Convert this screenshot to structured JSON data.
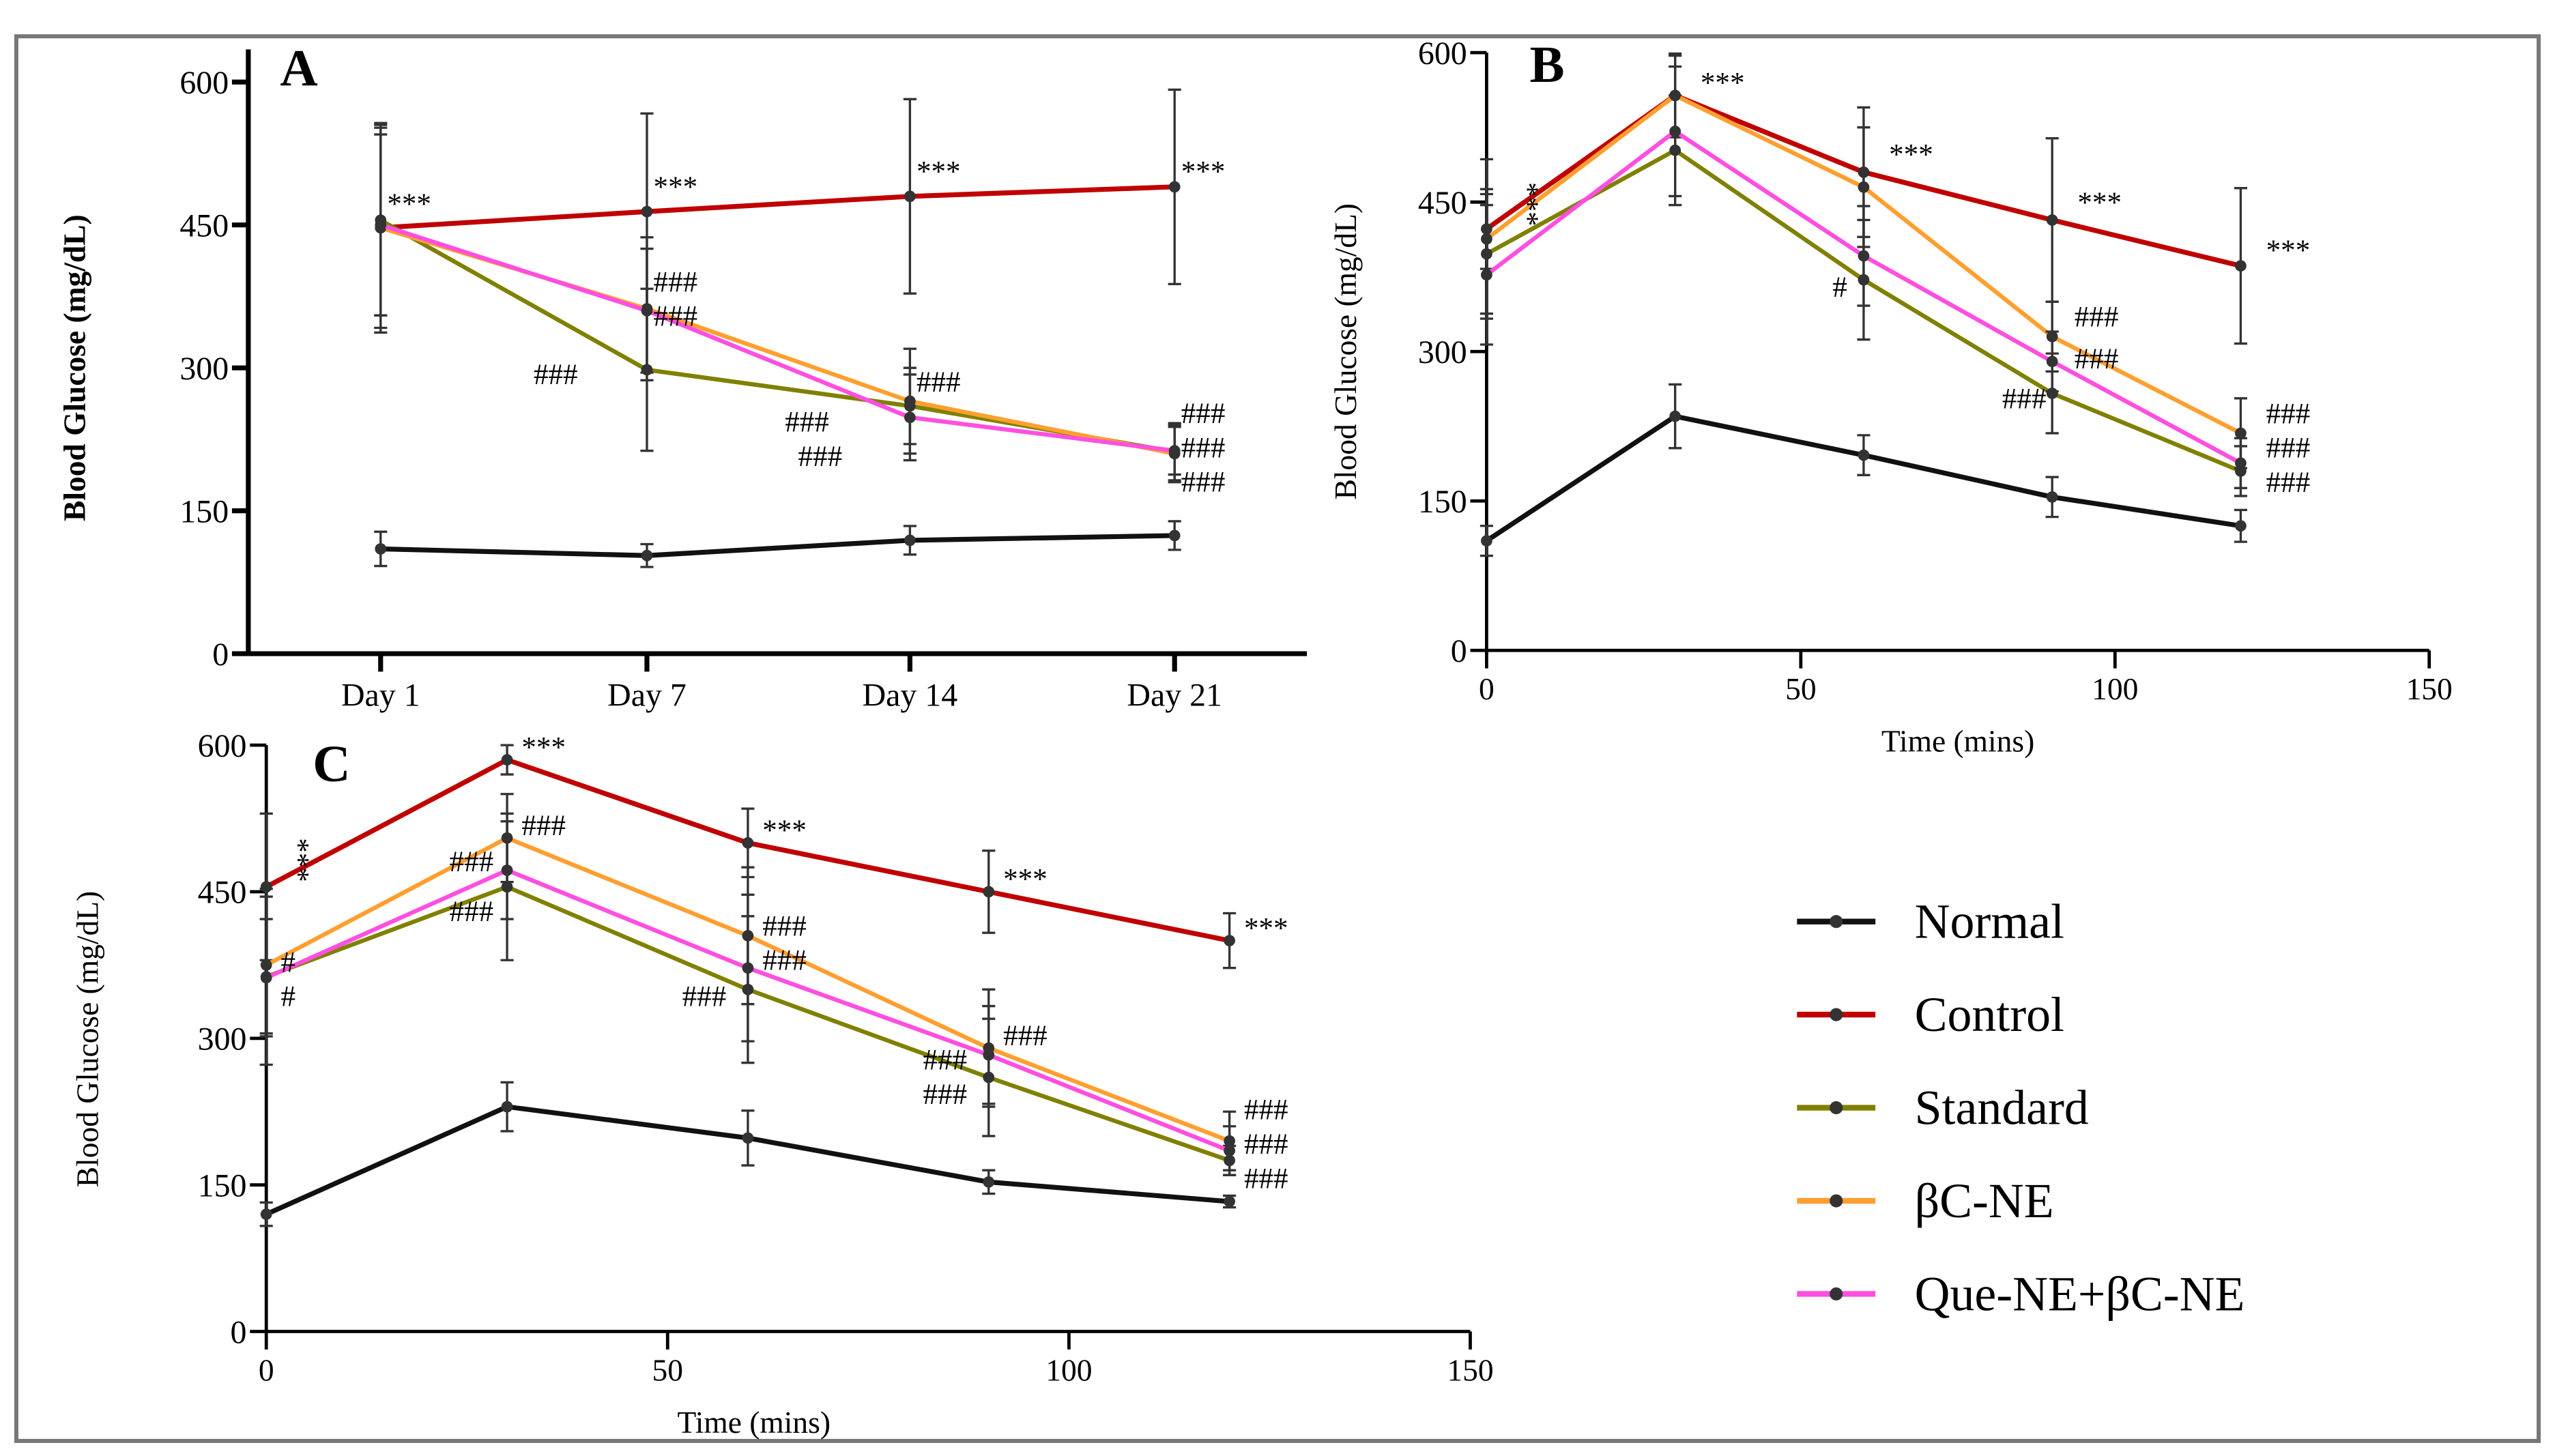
{
  "colors": {
    "Normal": "#111111",
    "Control": "#c00000",
    "Standard": "#808000",
    "βC-NE": "#ff9f30",
    "Que-NE+βC-NE": "#ff4fe0"
  },
  "legend": [
    "Normal",
    "Control",
    "Standard",
    "βC-NE",
    "Que-NE+βC-NE"
  ],
  "chart_data": [
    {
      "panel": "A",
      "type": "line",
      "ylabel": "Blood Glucose (mg/dL)",
      "xlabel": "",
      "categories": [
        "Day 1",
        "Day 7",
        "Day 14",
        "Day 21"
      ],
      "ylim": [
        0,
        600
      ],
      "yticks": [
        0,
        150,
        300,
        450,
        600
      ],
      "series": [
        {
          "name": "Normal",
          "values": [
            110,
            103,
            119,
            124
          ],
          "err": [
            18,
            12,
            15,
            15
          ]
        },
        {
          "name": "Control",
          "values": [
            447,
            464,
            480,
            490
          ],
          "err": [
            110,
            103,
            102,
            102
          ]
        },
        {
          "name": "Standard",
          "values": [
            455,
            298,
            260,
            212
          ],
          "err": [
            100,
            85,
            40,
            30
          ]
        },
        {
          "name": "βC-NE",
          "values": [
            447,
            362,
            265,
            210
          ],
          "err": [
            105,
            75,
            55,
            30
          ]
        },
        {
          "name": "Que-NE+βC-NE",
          "values": [
            450,
            360,
            248,
            213
          ],
          "err": [
            95,
            65,
            45,
            25
          ]
        }
      ],
      "annotations": [
        {
          "text": "***",
          "x": 0,
          "y": 462
        },
        {
          "text": "***",
          "x": 1,
          "y": 480
        },
        {
          "text": "***",
          "x": 2,
          "y": 496
        },
        {
          "text": "***",
          "x": 3,
          "y": 496
        },
        {
          "text": "###",
          "x": 1,
          "y": 380
        },
        {
          "text": "###",
          "x": 1,
          "y": 357
        },
        {
          "text": "###",
          "x": 0.55,
          "y": 283
        },
        {
          "text": "###",
          "x": 2,
          "y": 275
        },
        {
          "text": "###",
          "x": 1.5,
          "y": 233
        },
        {
          "text": "###",
          "x": 1.55,
          "y": 206
        },
        {
          "text": "###",
          "x": 3,
          "y": 242
        },
        {
          "text": "###",
          "x": 3,
          "y": 218
        },
        {
          "text": "###",
          "x": 3,
          "y": 194
        }
      ]
    },
    {
      "panel": "B",
      "type": "line",
      "ylabel": "Blood Glucose (mg/dL)",
      "xlabel": "Time (mins)",
      "x": [
        0,
        30,
        60,
        90,
        120
      ],
      "xlim": [
        0,
        150
      ],
      "xticks": [
        0,
        50,
        100,
        150
      ],
      "ylim": [
        0,
        600
      ],
      "yticks": [
        0,
        150,
        300,
        450,
        600
      ],
      "series": [
        {
          "name": "Normal",
          "values": [
            110,
            235,
            196,
            154,
            125
          ],
          "err": [
            15,
            32,
            20,
            20,
            16
          ]
        },
        {
          "name": "Control",
          "values": [
            423,
            557,
            480,
            432,
            386
          ],
          "err": [
            40,
            42,
            65,
            82,
            78
          ]
        },
        {
          "name": "Standard",
          "values": [
            398,
            502,
            372,
            258,
            180
          ],
          "err": [
            60,
            55,
            60,
            40,
            25
          ]
        },
        {
          "name": "βC-NE",
          "values": [
            413,
            557,
            465,
            315,
            218
          ],
          "err": [
            80,
            40,
            60,
            35,
            35
          ]
        },
        {
          "name": "Que-NE+βC-NE",
          "values": [
            377,
            521,
            396,
            290,
            188
          ],
          "err": [
            70,
            65,
            50,
            30,
            25
          ]
        }
      ],
      "annotations": [
        {
          "text": "***",
          "x": 33,
          "y": 560
        },
        {
          "text": "***",
          "x": 63,
          "y": 488
        },
        {
          "text": "***",
          "x": 93,
          "y": 440
        },
        {
          "text": "***",
          "x": 123,
          "y": 392
        },
        {
          "text": "***",
          "x": 4,
          "y": 470,
          "vertical": true
        },
        {
          "text": "#",
          "x": 54,
          "y": 355
        },
        {
          "text": "###",
          "x": 92.5,
          "y": 325
        },
        {
          "text": "###",
          "x": 92.5,
          "y": 283
        },
        {
          "text": "###",
          "x": 81,
          "y": 243
        },
        {
          "text": "###",
          "x": 123,
          "y": 228
        },
        {
          "text": "###",
          "x": 123,
          "y": 197
        },
        {
          "text": "###",
          "x": 123,
          "y": 167
        }
      ]
    },
    {
      "panel": "C",
      "type": "line",
      "ylabel": "Blood Glucose (mg/dL)",
      "xlabel": "Time (mins)",
      "x": [
        0,
        30,
        60,
        90,
        120
      ],
      "xlim": [
        0,
        150
      ],
      "xticks": [
        0,
        50,
        100,
        150
      ],
      "ylim": [
        0,
        600
      ],
      "yticks": [
        0,
        150,
        300,
        450,
        600
      ],
      "series": [
        {
          "name": "Normal",
          "values": [
            120,
            230,
            198,
            153,
            133
          ],
          "err": [
            12,
            25,
            28,
            12,
            6
          ]
        },
        {
          "name": "Control",
          "values": [
            455,
            585,
            500,
            450,
            400
          ],
          "err": [
            75,
            15,
            35,
            42,
            28
          ]
        },
        {
          "name": "Standard",
          "values": [
            363,
            455,
            350,
            260,
            175
          ],
          "err": [
            90,
            75,
            75,
            60,
            15
          ]
        },
        {
          "name": "βC-NE",
          "values": [
            375,
            505,
            405,
            290,
            195
          ],
          "err": [
            70,
            45,
            70,
            60,
            30
          ]
        },
        {
          "name": "Que-NE+βC-NE",
          "values": [
            362,
            472,
            372,
            283,
            185
          ],
          "err": [
            60,
            50,
            75,
            50,
            25
          ]
        }
      ],
      "annotations": [
        {
          "text": "***",
          "x": 31,
          "y": 588
        },
        {
          "text": "***",
          "x": 61,
          "y": 503
        },
        {
          "text": "***",
          "x": 91,
          "y": 453
        },
        {
          "text": "***",
          "x": 121,
          "y": 403
        },
        {
          "text": "***",
          "x": 2,
          "y": 505,
          "vertical": true
        },
        {
          "text": "#",
          "x": 1,
          "y": 368
        },
        {
          "text": "#",
          "x": 1,
          "y": 343
        },
        {
          "text": "###",
          "x": 31,
          "y": 508
        },
        {
          "text": "###",
          "x": 22,
          "y": 471
        },
        {
          "text": "###",
          "x": 22,
          "y": 420
        },
        {
          "text": "###",
          "x": 61,
          "y": 405
        },
        {
          "text": "###",
          "x": 61,
          "y": 378
        },
        {
          "text": "###",
          "x": 51,
          "y": 333
        },
        {
          "text": "###",
          "x": 91,
          "y": 293
        },
        {
          "text": "###",
          "x": 81,
          "y": 268
        },
        {
          "text": "###",
          "x": 81,
          "y": 235
        },
        {
          "text": "###",
          "x": 121,
          "y": 217
        },
        {
          "text": "###",
          "x": 121,
          "y": 186
        },
        {
          "text": "###",
          "x": 121,
          "y": 155
        }
      ]
    }
  ]
}
